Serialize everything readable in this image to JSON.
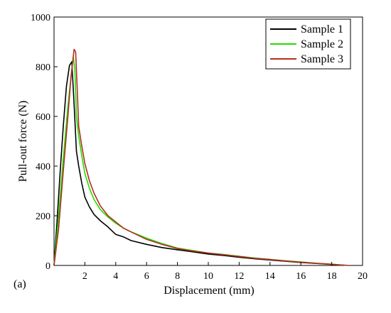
{
  "panel_label": "(a)",
  "chart_data": {
    "type": "line",
    "xlabel": "Displacement (mm)",
    "ylabel": "Pull-out force (N)",
    "xlim": [
      0,
      20
    ],
    "ylim": [
      0,
      1000
    ],
    "xticks": [
      2,
      4,
      6,
      8,
      10,
      12,
      14,
      16,
      18,
      20
    ],
    "xtick_labels": [
      "2",
      "4",
      "6",
      "8",
      "10",
      "12",
      "14",
      "16",
      "18",
      "20"
    ],
    "yticks": [
      0,
      200,
      400,
      600,
      800,
      1000
    ],
    "ytick_labels": [
      "0",
      "200",
      "400",
      "600",
      "800",
      "1000"
    ],
    "grid": false,
    "legend_position": "top-right",
    "series": [
      {
        "name": "Sample 1",
        "color": "#000000",
        "x": [
          0,
          0.2,
          0.4,
          0.6,
          0.8,
          1.0,
          1.15,
          1.3,
          1.45,
          1.6,
          1.8,
          2.0,
          2.3,
          2.6,
          3.0,
          3.5,
          4.0,
          4.5,
          5.0,
          6.0,
          7.0,
          8.0,
          9.0,
          10.0,
          11.0,
          12.0,
          13.0,
          14.0,
          15.0,
          16.0,
          17.0,
          18.0,
          18.8
        ],
        "y": [
          0,
          180,
          380,
          560,
          720,
          805,
          820,
          650,
          460,
          400,
          330,
          275,
          235,
          205,
          180,
          155,
          125,
          115,
          100,
          85,
          72,
          63,
          55,
          46,
          40,
          33,
          27,
          22,
          17,
          12,
          8,
          4,
          0
        ]
      },
      {
        "name": "Sample 2",
        "color": "#22dd00",
        "x": [
          0,
          0.3,
          0.6,
          0.9,
          1.1,
          1.25,
          1.35,
          1.45,
          1.6,
          1.8,
          2.0,
          2.3,
          2.6,
          3.0,
          3.5,
          4.0,
          4.5,
          5.0,
          6.0,
          7.0,
          8.0,
          9.0,
          10.0,
          11.0,
          12.0,
          13.0,
          14.0,
          15.0,
          16.0,
          17.0,
          18.0,
          19.0
        ],
        "y": [
          0,
          200,
          430,
          640,
          760,
          840,
          790,
          600,
          520,
          440,
          370,
          310,
          265,
          225,
          195,
          170,
          150,
          135,
          110,
          88,
          70,
          60,
          50,
          44,
          37,
          30,
          24,
          19,
          14,
          9,
          5,
          0
        ]
      },
      {
        "name": "Sample 3",
        "color": "#b03020",
        "x": [
          0,
          0.3,
          0.6,
          0.9,
          1.1,
          1.3,
          1.4,
          1.5,
          1.6,
          1.8,
          2.0,
          2.3,
          2.6,
          3.0,
          3.5,
          4.0,
          4.5,
          5.0,
          6.0,
          7.0,
          8.0,
          9.0,
          10.0,
          11.0,
          12.0,
          13.0,
          14.0,
          15.0,
          16.0,
          17.0,
          18.0,
          19.1
        ],
        "y": [
          0,
          150,
          380,
          600,
          760,
          870,
          860,
          720,
          560,
          480,
          410,
          340,
          290,
          240,
          200,
          175,
          150,
          135,
          105,
          85,
          68,
          58,
          50,
          43,
          36,
          29,
          24,
          18,
          13,
          9,
          5,
          0
        ]
      }
    ]
  }
}
